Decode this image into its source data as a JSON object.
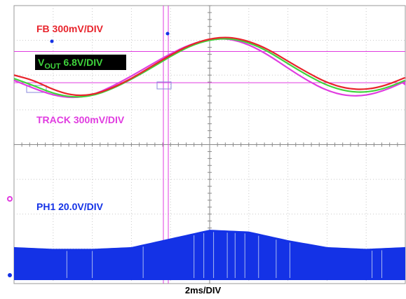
{
  "chart_data": {
    "type": "line",
    "time_per_div_label": "2ms/DIV",
    "divisions": {
      "x": 10,
      "y": 8
    },
    "x_range_ms": [
      0,
      20
    ],
    "y_range_div": [
      0,
      8
    ],
    "grid": true,
    "channels": [
      {
        "id": "fb",
        "label": "FB 300mV/DIV",
        "color": "#e8242c"
      },
      {
        "id": "vout",
        "label_main": "V",
        "label_sub": "OUT",
        "label_rest": " 6.8V/DIV",
        "color": "#3fd43c",
        "label_bg": "#000000"
      },
      {
        "id": "track",
        "label": "TRACK 300mV/DIV",
        "color": "#e03ce0"
      },
      {
        "id": "ph1",
        "label": "PH1 20.0V/DIV",
        "color": "#1432e6"
      }
    ],
    "series": [
      {
        "name": "FB",
        "x": [
          0,
          1,
          2,
          3,
          4,
          5,
          6,
          7,
          8,
          9,
          10,
          11,
          12,
          13,
          14,
          15,
          16,
          17,
          18,
          19,
          20
        ],
        "y": [
          6.0,
          5.85,
          5.58,
          5.41,
          5.43,
          5.62,
          5.9,
          6.24,
          6.58,
          6.87,
          7.05,
          7.1,
          6.98,
          6.74,
          6.4,
          6.07,
          5.78,
          5.61,
          5.58,
          5.7,
          5.93
        ]
      },
      {
        "name": "VOUT",
        "x": [
          0,
          1,
          2,
          3,
          4,
          5,
          6,
          7,
          8,
          9,
          10,
          11,
          12,
          13,
          14,
          15,
          16,
          17,
          18,
          19,
          20
        ],
        "y": [
          5.9,
          5.7,
          5.47,
          5.36,
          5.4,
          5.6,
          5.88,
          6.2,
          6.54,
          6.84,
          7.02,
          7.06,
          6.94,
          6.68,
          6.33,
          5.99,
          5.7,
          5.53,
          5.5,
          5.62,
          5.85
        ]
      },
      {
        "name": "TRACK",
        "x": [
          0,
          1,
          2,
          3,
          4,
          5,
          6,
          7,
          8,
          9,
          10,
          11,
          12,
          13,
          14,
          15,
          16,
          17,
          18,
          19,
          20
        ],
        "y": [
          5.85,
          5.62,
          5.42,
          5.34,
          5.42,
          5.67,
          5.97,
          6.3,
          6.62,
          6.88,
          7.04,
          7.05,
          6.88,
          6.58,
          6.2,
          5.84,
          5.55,
          5.4,
          5.41,
          5.57,
          5.82
        ]
      },
      {
        "name": "PH1 envelope",
        "x": [
          0,
          2,
          4,
          6,
          8,
          10,
          12,
          14,
          16,
          18,
          20
        ],
        "y": [
          1.05,
          1.0,
          1.0,
          1.05,
          1.3,
          1.55,
          1.5,
          1.25,
          1.05,
          1.0,
          1.05
        ]
      }
    ],
    "reference_levels_div": {
      "upper_marker": 6.68,
      "lower_marker": 5.78
    },
    "ph1_baseline_div": 0.1
  }
}
